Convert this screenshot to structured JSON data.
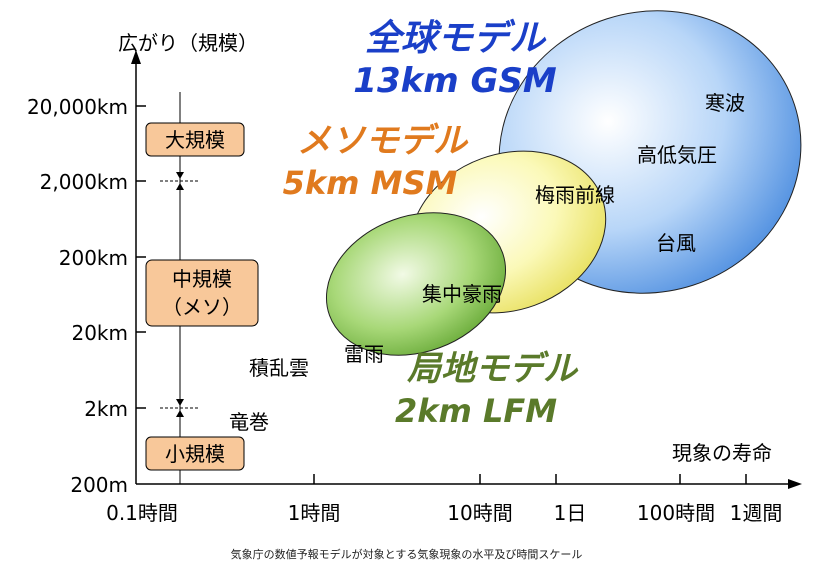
{
  "axes": {
    "y_label": "広がり（規模）",
    "x_label": "現象の寿命",
    "y_ticks": [
      "20,000km",
      "2,000km",
      "200km",
      "20km",
      "2km",
      "200m"
    ],
    "x_ticks": [
      "0.1時間",
      "1時間",
      "10時間",
      "1日",
      "100時間",
      "1週間"
    ]
  },
  "scale_categories": {
    "large": "大規模",
    "meso_line1": "中規模",
    "meso_line2": "（メソ）",
    "small": "小規模"
  },
  "models": {
    "gsm": {
      "name": "全球モデル",
      "spec": "13km GSM",
      "color": "#1a3fc8",
      "fill": "#7fb2f0"
    },
    "msm": {
      "name": "メソモデル",
      "spec": "5km MSM",
      "color": "#e07a1e",
      "fill": "#f7f28a"
    },
    "lfm": {
      "name": "局地モデル",
      "spec": "2km LFM",
      "color": "#5a7a2a",
      "fill": "#8ccc50"
    }
  },
  "phenomena": {
    "cold_wave": "寒波",
    "pressure_system": "高低気圧",
    "baiu_front": "梅雨前線",
    "typhoon": "台風",
    "heavy_rain": "集中豪雨",
    "thunderstorm": "雷雨",
    "cumulonimbus": "積乱雲",
    "tornado": "竜巻"
  },
  "caption": "気象庁の数値予報モデルが対象とする気象現象の水平及び時間スケール"
}
